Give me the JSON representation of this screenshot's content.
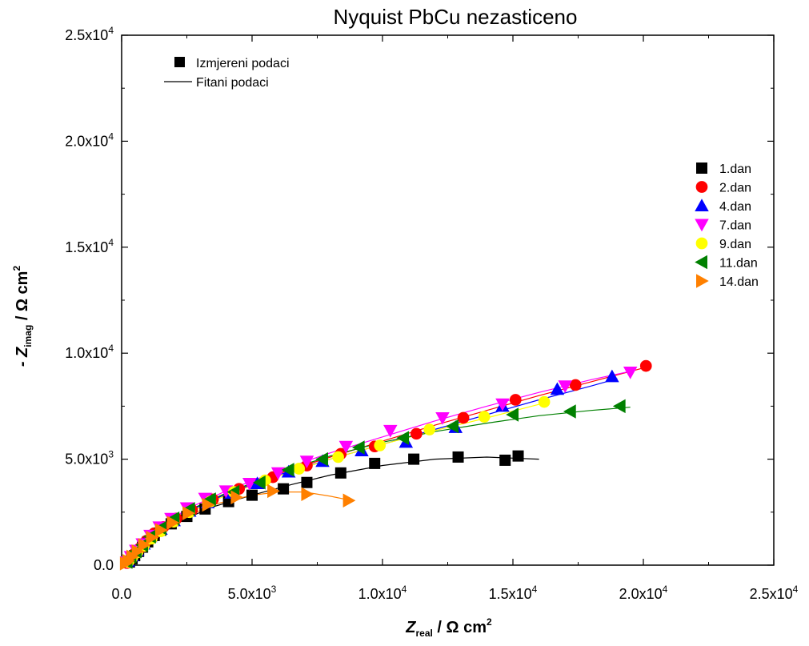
{
  "chart_data": {
    "type": "scatter",
    "title": "Nyquist PbCu nezasticeno",
    "xlabel": {
      "main": "Z",
      "sub": "real",
      "unit": " / Ω cm",
      "sup": "2"
    },
    "ylabel": {
      "main": "- Z",
      "sub": "imag",
      "unit": " / Ω cm",
      "sup": "2"
    },
    "xlim": [
      0,
      25000
    ],
    "ylim": [
      0,
      25000
    ],
    "x_ticks": [
      {
        "value": 0,
        "base": "0.0",
        "exp": ""
      },
      {
        "value": 5000,
        "base": "5.0x10",
        "exp": "3"
      },
      {
        "value": 10000,
        "base": "1.0x10",
        "exp": "4"
      },
      {
        "value": 15000,
        "base": "1.5x10",
        "exp": "4"
      },
      {
        "value": 20000,
        "base": "2.0x10",
        "exp": "4"
      },
      {
        "value": 25000,
        "base": "2.5x10",
        "exp": "4"
      }
    ],
    "y_ticks": [
      {
        "value": 0,
        "base": "0.0",
        "exp": ""
      },
      {
        "value": 5000,
        "base": "5.0x10",
        "exp": "3"
      },
      {
        "value": 10000,
        "base": "1.0x10",
        "exp": "4"
      },
      {
        "value": 15000,
        "base": "1.5x10",
        "exp": "4"
      },
      {
        "value": 20000,
        "base": "2.0x10",
        "exp": "4"
      },
      {
        "value": 25000,
        "base": "2.5x10",
        "exp": "4"
      }
    ],
    "legend_type": {
      "placement": "top-left",
      "entries": [
        {
          "label": "Izmjereni podaci",
          "style": "marker"
        },
        {
          "label": "Fitani podaci",
          "style": "line"
        }
      ]
    },
    "legend_placement": "right",
    "series": [
      {
        "name": "1.dan",
        "marker": "square",
        "color": "#000000",
        "points": [
          [
            300,
            150
          ],
          [
            400,
            300
          ],
          [
            500,
            450
          ],
          [
            650,
            650
          ],
          [
            800,
            850
          ],
          [
            1000,
            1100
          ],
          [
            1250,
            1400
          ],
          [
            1500,
            1650
          ],
          [
            1900,
            1950
          ],
          [
            2500,
            2300
          ],
          [
            3200,
            2650
          ],
          [
            4100,
            3000
          ],
          [
            5000,
            3300
          ],
          [
            6200,
            3600
          ],
          [
            7100,
            3900
          ],
          [
            8400,
            4350
          ],
          [
            9700,
            4800
          ],
          [
            11200,
            5000
          ],
          [
            12900,
            5100
          ],
          [
            14700,
            4950
          ],
          [
            15200,
            5150
          ]
        ],
        "fit": [
          [
            300,
            150
          ],
          [
            1000,
            1100
          ],
          [
            2000,
            1950
          ],
          [
            3500,
            2750
          ],
          [
            5000,
            3300
          ],
          [
            6500,
            3800
          ],
          [
            8000,
            4250
          ],
          [
            10000,
            4700
          ],
          [
            12000,
            5000
          ],
          [
            14000,
            5100
          ],
          [
            16000,
            5000
          ]
        ]
      },
      {
        "name": "2.dan",
        "marker": "circle",
        "color": "#ff0000",
        "points": [
          [
            200,
            100
          ],
          [
            350,
            300
          ],
          [
            500,
            550
          ],
          [
            700,
            800
          ],
          [
            950,
            1150
          ],
          [
            1250,
            1500
          ],
          [
            1600,
            1800
          ],
          [
            2100,
            2200
          ],
          [
            2700,
            2600
          ],
          [
            3500,
            3100
          ],
          [
            4500,
            3600
          ],
          [
            5800,
            4150
          ],
          [
            7100,
            4700
          ],
          [
            8400,
            5250
          ],
          [
            9700,
            5600
          ],
          [
            11300,
            6200
          ],
          [
            13100,
            6950
          ],
          [
            15100,
            7800
          ],
          [
            17400,
            8500
          ],
          [
            20100,
            9400
          ]
        ],
        "fit": [
          [
            200,
            100
          ],
          [
            1000,
            1250
          ],
          [
            2500,
            2500
          ],
          [
            4000,
            3400
          ],
          [
            6000,
            4300
          ],
          [
            8000,
            5100
          ],
          [
            10000,
            5850
          ],
          [
            12000,
            6600
          ],
          [
            14000,
            7300
          ],
          [
            16000,
            8000
          ],
          [
            18000,
            8650
          ],
          [
            20000,
            9300
          ]
        ]
      },
      {
        "name": "4.dan",
        "marker": "triangle-up",
        "color": "#0000ff",
        "points": [
          [
            250,
            200
          ],
          [
            400,
            450
          ],
          [
            600,
            700
          ],
          [
            850,
            1000
          ],
          [
            1100,
            1350
          ],
          [
            1500,
            1700
          ],
          [
            2000,
            2100
          ],
          [
            2600,
            2550
          ],
          [
            3300,
            2950
          ],
          [
            4200,
            3400
          ],
          [
            5200,
            3850
          ],
          [
            6400,
            4400
          ],
          [
            7700,
            4900
          ],
          [
            9200,
            5400
          ],
          [
            10900,
            5800
          ],
          [
            12800,
            6500
          ],
          [
            14600,
            7500
          ],
          [
            16700,
            8300
          ],
          [
            18800,
            8900
          ]
        ],
        "fit": [
          [
            250,
            200
          ],
          [
            1000,
            1250
          ],
          [
            2500,
            2500
          ],
          [
            4000,
            3350
          ],
          [
            6000,
            4250
          ],
          [
            8000,
            5000
          ],
          [
            10000,
            5700
          ],
          [
            12000,
            6400
          ],
          [
            14000,
            7100
          ],
          [
            16000,
            7800
          ],
          [
            18000,
            8450
          ],
          [
            19000,
            8800
          ]
        ]
      },
      {
        "name": "7.dan",
        "marker": "triangle-down",
        "color": "#ff00ff",
        "points": [
          [
            200,
            150
          ],
          [
            350,
            400
          ],
          [
            550,
            700
          ],
          [
            800,
            1000
          ],
          [
            1100,
            1400
          ],
          [
            1450,
            1800
          ],
          [
            1900,
            2200
          ],
          [
            2500,
            2700
          ],
          [
            3200,
            3150
          ],
          [
            4000,
            3500
          ],
          [
            4900,
            3850
          ],
          [
            6000,
            4350
          ],
          [
            7100,
            4900
          ],
          [
            8600,
            5600
          ],
          [
            10300,
            6350
          ],
          [
            12300,
            6950
          ],
          [
            14600,
            7600
          ],
          [
            17000,
            8450
          ],
          [
            19500,
            9100
          ]
        ],
        "fit": [
          [
            200,
            150
          ],
          [
            1000,
            1350
          ],
          [
            2500,
            2650
          ],
          [
            4000,
            3500
          ],
          [
            6000,
            4450
          ],
          [
            8000,
            5300
          ],
          [
            10000,
            6050
          ],
          [
            12000,
            6800
          ],
          [
            14000,
            7500
          ],
          [
            16000,
            8150
          ],
          [
            18000,
            8750
          ],
          [
            19700,
            9200
          ]
        ]
      },
      {
        "name": "9.dan",
        "marker": "circle",
        "color": "#ffff00",
        "points": [
          [
            250,
            150
          ],
          [
            400,
            350
          ],
          [
            600,
            600
          ],
          [
            850,
            900
          ],
          [
            1150,
            1250
          ],
          [
            1500,
            1600
          ],
          [
            2000,
            2050
          ],
          [
            2600,
            2500
          ],
          [
            3400,
            3000
          ],
          [
            4300,
            3450
          ],
          [
            5500,
            4000
          ],
          [
            6800,
            4550
          ],
          [
            8300,
            5100
          ],
          [
            9900,
            5650
          ],
          [
            11800,
            6400
          ],
          [
            13900,
            7000
          ],
          [
            16200,
            7700
          ]
        ],
        "fit": [
          [
            250,
            150
          ],
          [
            1000,
            1200
          ],
          [
            2500,
            2400
          ],
          [
            4000,
            3300
          ],
          [
            6000,
            4200
          ],
          [
            8000,
            5000
          ],
          [
            10000,
            5700
          ],
          [
            12000,
            6350
          ],
          [
            14000,
            6950
          ],
          [
            16200,
            7650
          ]
        ]
      },
      {
        "name": "11.dan",
        "marker": "triangle-left",
        "color": "#008000",
        "points": [
          [
            200,
            150
          ],
          [
            350,
            400
          ],
          [
            550,
            650
          ],
          [
            800,
            950
          ],
          [
            1100,
            1350
          ],
          [
            1500,
            1750
          ],
          [
            2000,
            2200
          ],
          [
            2600,
            2650
          ],
          [
            3400,
            3100
          ],
          [
            4300,
            3450
          ],
          [
            5300,
            3900
          ],
          [
            6400,
            4500
          ],
          [
            7700,
            5000
          ],
          [
            9100,
            5550
          ],
          [
            10800,
            6000
          ],
          [
            12700,
            6550
          ],
          [
            15000,
            7100
          ],
          [
            17200,
            7250
          ],
          [
            19100,
            7500
          ]
        ],
        "fit": [
          [
            200,
            150
          ],
          [
            1000,
            1300
          ],
          [
            2500,
            2550
          ],
          [
            4000,
            3400
          ],
          [
            6000,
            4350
          ],
          [
            8000,
            5150
          ],
          [
            10000,
            5800
          ],
          [
            12000,
            6300
          ],
          [
            14000,
            6700
          ],
          [
            16000,
            7050
          ],
          [
            18000,
            7300
          ],
          [
            19500,
            7450
          ]
        ]
      },
      {
        "name": "14.dan",
        "marker": "triangle-right",
        "color": "#ff8000",
        "points": [
          [
            150,
            80
          ],
          [
            250,
            200
          ],
          [
            400,
            400
          ],
          [
            600,
            650
          ],
          [
            850,
            950
          ],
          [
            1150,
            1300
          ],
          [
            1500,
            1650
          ],
          [
            1950,
            2000
          ],
          [
            2550,
            2450
          ],
          [
            3300,
            2850
          ],
          [
            4400,
            3200
          ],
          [
            5800,
            3500
          ],
          [
            7100,
            3350
          ],
          [
            8700,
            3050
          ]
        ],
        "fit": [
          [
            150,
            80
          ],
          [
            1000,
            1150
          ],
          [
            2000,
            2000
          ],
          [
            3500,
            2850
          ],
          [
            5000,
            3300
          ],
          [
            6000,
            3450
          ],
          [
            7000,
            3450
          ],
          [
            8000,
            3250
          ],
          [
            8800,
            3050
          ]
        ]
      }
    ]
  }
}
